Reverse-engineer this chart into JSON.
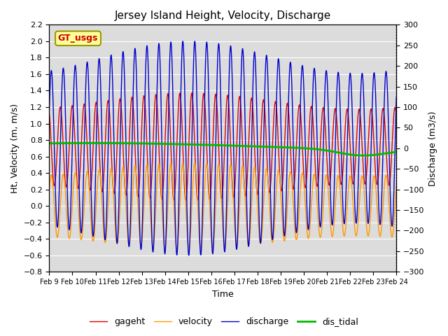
{
  "title": "Jersey Island Height, Velocity, Discharge",
  "ylabel_left": "Ht, Velocity (m, m/s)",
  "ylabel_right": "Discharge (m3/s)",
  "xlabel": "Time",
  "ylim_left": [
    -0.8,
    2.2
  ],
  "ylim_right": [
    -300,
    300
  ],
  "xtick_labels": [
    "Feb 9",
    "Feb 10",
    "Feb 11",
    "Feb 12",
    "Feb 13",
    "Feb 14",
    "Feb 15",
    "Feb 16",
    "Feb 17",
    "Feb 18",
    "Feb 19",
    "Feb 20",
    "Feb 21",
    "Feb 22",
    "Feb 23",
    "Feb 24"
  ],
  "bg_color": "#dcdcdc",
  "fig_color": "#ffffff",
  "annotation_text": "GT_usgs",
  "annotation_bg": "#ffff99",
  "annotation_border": "#999900",
  "line_colors": {
    "gageht": "#dd0000",
    "velocity": "#ff9900",
    "discharge": "#0000cc",
    "dis_tidal": "#00bb00"
  },
  "legend_labels": [
    "gageht",
    "velocity",
    "discharge",
    "dis_tidal"
  ],
  "n_points": 5000,
  "time_days": 15
}
